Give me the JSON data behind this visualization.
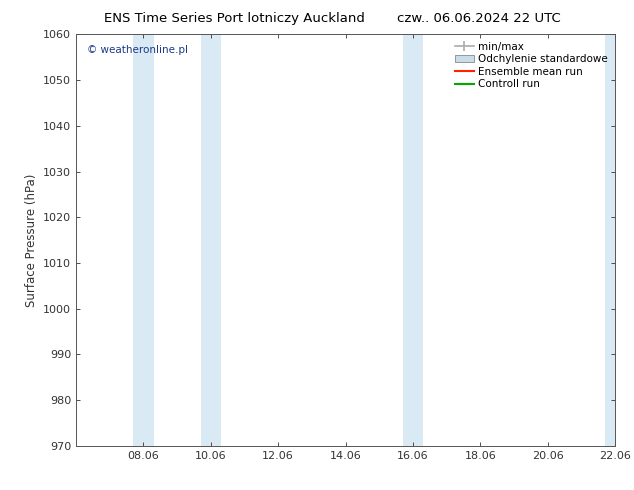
{
  "title_left": "ENS Time Series Port lotniczy Auckland",
  "title_right": "czw.. 06.06.2024 22 UTC",
  "ylabel": "Surface Pressure (hPa)",
  "ylim": [
    970,
    1060
  ],
  "yticks": [
    970,
    980,
    990,
    1000,
    1010,
    1020,
    1030,
    1040,
    1050,
    1060
  ],
  "xlim": [
    0,
    16
  ],
  "xtick_labels": [
    "08.06",
    "10.06",
    "12.06",
    "14.06",
    "16.06",
    "18.06",
    "20.06",
    "22.06"
  ],
  "xtick_positions": [
    2,
    4,
    6,
    8,
    10,
    12,
    14,
    16
  ],
  "watermark": "© weatheronline.pl",
  "watermark_color": "#1a3a8a",
  "legend_labels": [
    "min/max",
    "Odchylenie standardowe",
    "Ensemble mean run",
    "Controll run"
  ],
  "legend_line_color": "#aaaaaa",
  "legend_fill_color": "#c8dcea",
  "legend_red": "#ff2200",
  "legend_green": "#00aa00",
  "shaded_bands": [
    {
      "xmin": 1.7,
      "xmax": 2.3
    },
    {
      "xmin": 3.7,
      "xmax": 4.3
    },
    {
      "xmin": 9.7,
      "xmax": 10.3
    },
    {
      "xmin": 15.7,
      "xmax": 16.3
    }
  ],
  "shaded_color": "#daeaf5",
  "plot_bg_color": "#ffffff",
  "fig_bg_color": "#ffffff",
  "border_color": "#555555",
  "tick_color": "#333333"
}
